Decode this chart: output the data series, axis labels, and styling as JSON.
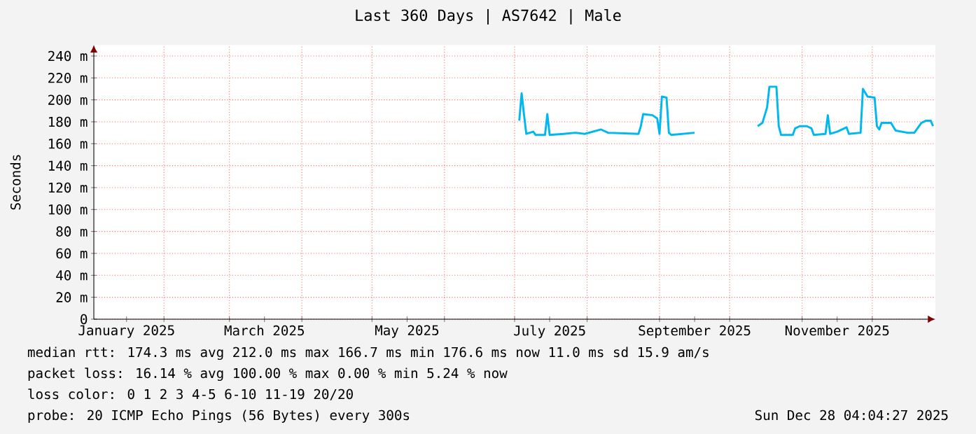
{
  "chart_data": {
    "type": "line",
    "title": "Last 360 Days | AS7642 | Male",
    "ylabel": "Seconds",
    "x": [
      "2025-07-03",
      "2025-07-04",
      "2025-07-05",
      "2025-07-06",
      "2025-07-09",
      "2025-07-10",
      "2025-07-14",
      "2025-07-15",
      "2025-07-16",
      "2025-07-22",
      "2025-07-27",
      "2025-07-31",
      "2025-08-07",
      "2025-08-10",
      "2025-08-23",
      "2025-08-24",
      "2025-08-25",
      "2025-08-29",
      "2025-08-31",
      "2025-09-01",
      "2025-09-02",
      "2025-09-04",
      "2025-09-05",
      "2025-09-06",
      "2025-09-16",
      "2025-10-01",
      "2025-10-13",
      "2025-10-15",
      "2025-10-17",
      "2025-10-18",
      "2025-10-21",
      "2025-10-22",
      "2025-10-23",
      "2025-10-28",
      "2025-10-29",
      "2025-10-31",
      "2025-11-03",
      "2025-11-05",
      "2025-11-06",
      "2025-11-11",
      "2025-11-12",
      "2025-11-13",
      "2025-11-16",
      "2025-11-20",
      "2025-11-21",
      "2025-11-26",
      "2025-11-27",
      "2025-11-29",
      "2025-12-02",
      "2025-12-03",
      "2025-12-04",
      "2025-12-05",
      "2025-12-09",
      "2025-12-11",
      "2025-12-16",
      "2025-12-19",
      "2025-12-22",
      "2025-12-24",
      "2025-12-26",
      "2025-12-27"
    ],
    "series": [
      {
        "color": "#00b8f0",
        "values": [
          181,
          206,
          187,
          169,
          171,
          168,
          168,
          187,
          168,
          169,
          170,
          169,
          173,
          170,
          169,
          176,
          187,
          186,
          183,
          169,
          203,
          202,
          170,
          168,
          170,
          null,
          176,
          179,
          193,
          212,
          212,
          176,
          168,
          168,
          174,
          176,
          176,
          174,
          168,
          169,
          186,
          169,
          171,
          175,
          169,
          170,
          210,
          203,
          202,
          176,
          173,
          179,
          179,
          172,
          170,
          170,
          179,
          181,
          181,
          176
        ]
      }
    ],
    "xlim": [
      "2025-01-02",
      "2025-12-28"
    ],
    "xticks": [
      {
        "value": "2025-02-01",
        "label": null
      },
      {
        "value": "2025-03-01",
        "label": null
      },
      {
        "value": "2025-04-01",
        "label": null
      },
      {
        "value": "2025-05-01",
        "label": null
      },
      {
        "value": "2025-06-01",
        "label": null
      },
      {
        "value": "2025-07-01",
        "label": null
      },
      {
        "value": "2025-08-01",
        "label": null
      },
      {
        "value": "2025-09-01",
        "label": null
      },
      {
        "value": "2025-10-01",
        "label": null
      },
      {
        "value": "2025-11-01",
        "label": null
      },
      {
        "value": "2025-12-01",
        "label": null
      },
      {
        "value": "2025-01-16",
        "label": "January 2025"
      },
      {
        "value": "2025-03-16",
        "label": "March 2025"
      },
      {
        "value": "2025-05-16",
        "label": "May 2025"
      },
      {
        "value": "2025-07-16",
        "label": "July 2025"
      },
      {
        "value": "2025-09-16",
        "label": "September 2025"
      },
      {
        "value": "2025-11-16",
        "label": "November 2025"
      }
    ],
    "ylim": [
      0,
      250
    ],
    "yticks": [
      0,
      {
        "value": 20,
        "label": "20 m"
      },
      {
        "value": 40,
        "label": "40 m"
      },
      {
        "value": 60,
        "label": "60 m"
      },
      {
        "value": 80,
        "label": "80 m"
      },
      {
        "value": 100,
        "label": "100 m"
      },
      {
        "value": 120,
        "label": "120 m"
      },
      {
        "value": 140,
        "label": "140 m"
      },
      {
        "value": 160,
        "label": "160 m"
      },
      {
        "value": 180,
        "label": "180 m"
      },
      {
        "value": 200,
        "label": "200 m"
      },
      {
        "value": 220,
        "label": "220 m"
      },
      {
        "value": 240,
        "label": "240 m"
      }
    ],
    "grid": true,
    "marker": "none",
    "line_style": "solid",
    "annotations": [
      "median rtt: 174.3 ms avg 212.0 ms max 166.7 ms min 176.6 ms now 11.0 ms sd 15.9 am/s",
      "packet loss: 16.14 % avg 100.00 % max 0.00 % min 5.24 % now",
      "loss color: 0 1 2 3 4-5 6-10 11-19 20/20",
      "probe: 20 ICMP Echo Pings (56 Bytes) every 300s",
      "Sun Dec 28 04:04:27 2025"
    ]
  }
}
